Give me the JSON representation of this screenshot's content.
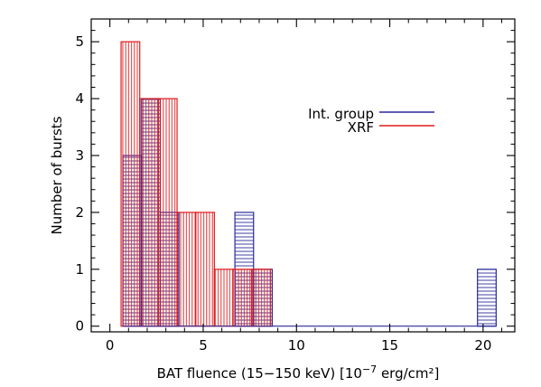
{
  "chart_data": {
    "type": "bar",
    "subtype": "overlaid-histogram",
    "xlabel": {
      "prefix": "BAT fluence (15−150 keV) [10",
      "exponent": "−7",
      "suffix": " erg/cm²]"
    },
    "ylabel": "Number of bursts",
    "xlim": [
      -1,
      21.7
    ],
    "ylim": [
      -0.1,
      5.4
    ],
    "xticks": [
      0,
      5,
      10,
      15,
      20
    ],
    "yticks": [
      0,
      1,
      2,
      3,
      4,
      5
    ],
    "grid": false,
    "legend_position": "top-right",
    "series": [
      {
        "name": "Int. group",
        "color": "#2a2a9a",
        "hatch": "horizontal",
        "bins": [
          {
            "x0": 0.7,
            "x1": 1.7,
            "count": 3
          },
          {
            "x0": 1.7,
            "x1": 2.7,
            "count": 4
          },
          {
            "x0": 2.7,
            "x1": 3.7,
            "count": 2
          },
          {
            "x0": 6.7,
            "x1": 7.7,
            "count": 2
          },
          {
            "x0": 7.7,
            "x1": 8.7,
            "count": 1
          },
          {
            "x0": 19.7,
            "x1": 20.7,
            "count": 1
          }
        ]
      },
      {
        "name": "XRF",
        "color": "#e01b1b",
        "hatch": "vertical",
        "bins": [
          {
            "x0": 0.6,
            "x1": 1.6,
            "count": 5
          },
          {
            "x0": 1.6,
            "x1": 2.6,
            "count": 4
          },
          {
            "x0": 2.6,
            "x1": 3.6,
            "count": 4
          },
          {
            "x0": 3.6,
            "x1": 4.6,
            "count": 2
          },
          {
            "x0": 4.6,
            "x1": 5.6,
            "count": 2
          },
          {
            "x0": 5.6,
            "x1": 6.6,
            "count": 1
          },
          {
            "x0": 6.6,
            "x1": 7.6,
            "count": 1
          },
          {
            "x0": 7.6,
            "x1": 8.6,
            "count": 1
          }
        ]
      }
    ]
  }
}
